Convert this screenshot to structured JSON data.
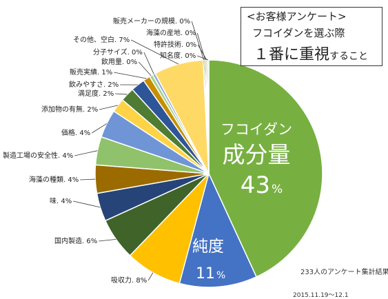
{
  "title": {
    "line1": "<お客様アンケート>",
    "line2": "フコイダンを選ぶ際",
    "line3_main": "１番に重視",
    "line3_tail": "すること"
  },
  "footer": {
    "respondents": "233人のアンケート集計結果",
    "period": "2015.11.19～12.1"
  },
  "callouts": {
    "largest": {
      "line1": "フコイダン",
      "line2": "成分量",
      "value": "43",
      "unit": "%"
    },
    "second": {
      "line1": "純度",
      "value": "11",
      "unit": "%"
    }
  },
  "chart_data": {
    "type": "pie",
    "start": "12 o'clock",
    "direction": "clockwise",
    "slices": [
      {
        "name": "フコイダン成分量",
        "label": "",
        "value": 43,
        "color": "#77b041"
      },
      {
        "name": "純度",
        "label": "",
        "value": 11,
        "color": "#4472c4"
      },
      {
        "name": "吸収力",
        "label": "吸収力. 8%",
        "value": 8,
        "color": "#ffc000"
      },
      {
        "name": "国内製造",
        "label": "国内製造. 6%",
        "value": 6,
        "color": "#3f6328"
      },
      {
        "name": "味",
        "label": "味. 4%",
        "value": 4,
        "color": "#264478"
      },
      {
        "name": "海藻の種類",
        "label": "海藻の種類. 4%",
        "value": 4,
        "color": "#9b6b00"
      },
      {
        "name": "製造工場の安全性",
        "label": "製造工場の安全性. 4%",
        "value": 4,
        "color": "#8fc26b"
      },
      {
        "name": "価格",
        "label": "価格. 4%",
        "value": 4,
        "color": "#6f95d6"
      },
      {
        "name": "添加物の有無",
        "label": "添加物の有無. 2%",
        "value": 2,
        "color": "#ffd346"
      },
      {
        "name": "満足度",
        "label": "満足度. 2%",
        "value": 2,
        "color": "#4f7c33"
      },
      {
        "name": "飲みやすさ",
        "label": "飲みやすさ. 2%",
        "value": 2,
        "color": "#2e5597"
      },
      {
        "name": "販売実績",
        "label": "販売実績. 1%",
        "value": 1,
        "color": "#c78f00"
      },
      {
        "name": "飲用量",
        "label": "飲用量. 0%",
        "value": 0.5,
        "color": "#a9d18e"
      },
      {
        "name": "分子サイズ",
        "label": "分子サイズ. 0%",
        "value": 0.4,
        "color": "#8faadc"
      },
      {
        "name": "その他、空白",
        "label": "その他、空白. 7%",
        "value": 7,
        "color": "#ffd966"
      },
      {
        "name": "販売メーカーの規模",
        "label": "販売メーカーの規模. 0%",
        "value": 0.2,
        "color": "#548235"
      },
      {
        "name": "海藻の産地",
        "label": "海藻の産地. 0%",
        "value": 0.2,
        "color": "#2f5597"
      },
      {
        "name": "特許技術",
        "label": "特許技術. 0%",
        "value": 0.2,
        "color": "#bf9000"
      },
      {
        "name": "知名度",
        "label": "知名度. 0%",
        "value": 0.2,
        "color": "#c5e0b4"
      }
    ]
  }
}
